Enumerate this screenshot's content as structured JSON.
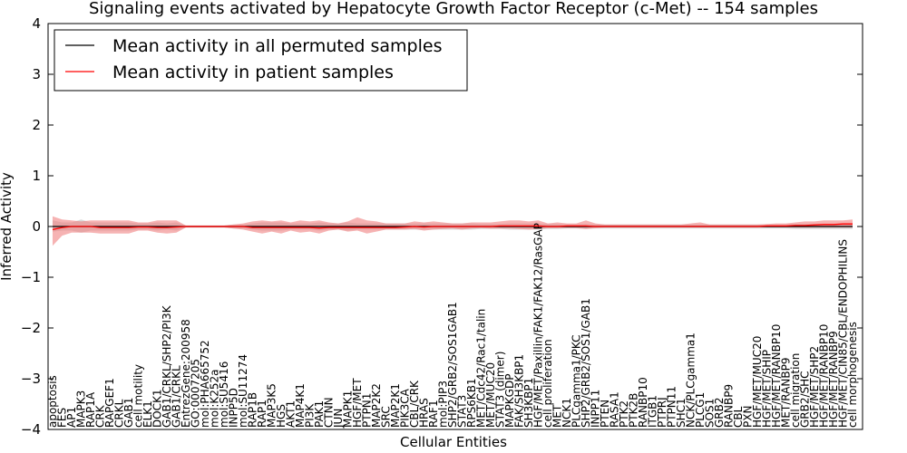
{
  "chart_data": {
    "type": "line",
    "title": "Signaling events activated by Hepatocyte Growth Factor Receptor (c-Met) -- 154 samples",
    "xlabel": "Cellular Entities",
    "ylabel": "Inferred Activity",
    "ylim": [
      -4,
      4
    ],
    "yticks": [
      -4,
      -3,
      -2,
      -1,
      0,
      1,
      2,
      3,
      4
    ],
    "ytick_labels": [
      "−4",
      "−3",
      "−2",
      "−1",
      "0",
      "1",
      "2",
      "3",
      "4"
    ],
    "legend_position": "top-left",
    "categories": [
      "apoptosis",
      "FES",
      "AP1",
      "MAPK3",
      "RAP1A",
      "CRK",
      "RAPGEF1",
      "CRKL",
      "GAB1",
      "cell motility",
      "ELK1",
      "DOCK1",
      "GAB1/CRKL/SHP2/PI3K",
      "GAB1/CRKL",
      "EntrezGene:200958",
      "GO:0007205",
      "mol:PHA665752",
      "mol:K252a",
      "mol:SU5416",
      "INPP5D",
      "mol:SU11274",
      "RAP1B",
      "RAP1",
      "MAP3K5",
      "HGS",
      "AKT1",
      "MAP4K1",
      "PI3K",
      "PAK1",
      "CTNN",
      "JUN",
      "MAPK1",
      "HGF/MET",
      "PTPN1",
      "MAP2K2",
      "SRC",
      "MAP2K1",
      "PIK3CA",
      "CBL/CRK",
      "HRAS",
      "RAF1",
      "mol:PIP3",
      "SHP2/GRB2/SOS1GAB1",
      "STAT3",
      "RPS6KB1",
      "MET/Cdc42/Rac1/talin",
      "MET/MUC20",
      "STAT3 (dimer)",
      "MAPKGDP",
      "FAK/SH3KBP1",
      "SH3KBP1",
      "HGF/MET/Paxillin/FAK1/FAK12/RasGAP",
      "cell proliferation",
      "MET",
      "NCK1",
      "PLCgamma1/PKC",
      "SHP2/GRB2/SOS1/GAB1",
      "INPP11",
      "PTEN",
      "RASA1",
      "PTK2",
      "PTK2B",
      "RANBP10",
      "ITGB1",
      "PTPRJ",
      "PTPN11",
      "SHC1",
      "NCK/PLCgamma1",
      "PLCG1",
      "SOS1",
      "GRB2",
      "RANBP9",
      "CBL",
      "PXN",
      "HGF/MET/MUC20",
      "HGF/MET/SHIP",
      "HGF/MET/RANBP10",
      "MET/RANBP9",
      "cell migration",
      "GRB2/SHC",
      "HGF/MET/SHP2",
      "HGF/MET/RANBP10",
      "HGF/MET/RANBP9",
      "HGF/MET/CIN85/CBL/ENDOPHILINS",
      "cell morphogenesis"
    ],
    "series": [
      {
        "name": "Mean activity in all permuted samples",
        "color": "#000000",
        "values": [
          0.0,
          0.0,
          0.0,
          0.0,
          0.0,
          0.0,
          0.0,
          0.0,
          0.0,
          0.0,
          0.0,
          0.0,
          0.0,
          0.0,
          0.0,
          0.0,
          0.0,
          0.0,
          0.0,
          0.0,
          0.0,
          0.0,
          0.0,
          0.0,
          0.0,
          0.0,
          0.0,
          0.0,
          0.0,
          0.0,
          0.0,
          0.0,
          0.0,
          0.0,
          0.0,
          0.0,
          0.0,
          0.0,
          0.0,
          0.0,
          0.0,
          0.0,
          0.0,
          0.0,
          0.0,
          0.0,
          0.0,
          0.0,
          0.0,
          0.0,
          0.0,
          0.0,
          0.0,
          0.0,
          0.0,
          0.0,
          0.0,
          0.0,
          0.0,
          0.0,
          0.0,
          0.0,
          0.0,
          0.0,
          0.0,
          0.0,
          0.0,
          0.0,
          0.0,
          0.0,
          0.0,
          0.0,
          0.0,
          0.0,
          0.0,
          0.0,
          0.0,
          0.0,
          0.0,
          0.0,
          0.0,
          0.0,
          0.0,
          0.0,
          0.0
        ],
        "band_lower": [
          -0.1,
          -0.08,
          -0.08,
          -0.12,
          -0.08,
          -0.08,
          -0.08,
          -0.08,
          -0.08,
          -0.06,
          -0.06,
          -0.08,
          -0.06,
          -0.08,
          -0.02,
          -0.02,
          -0.02,
          -0.02,
          -0.02,
          -0.04,
          -0.04,
          -0.06,
          -0.08,
          -0.08,
          -0.08,
          -0.06,
          -0.06,
          -0.06,
          -0.08,
          -0.06,
          -0.06,
          -0.08,
          -0.06,
          -0.06,
          -0.06,
          -0.06,
          -0.06,
          -0.06,
          -0.06,
          -0.06,
          -0.06,
          -0.06,
          -0.06,
          -0.06,
          -0.06,
          -0.05,
          -0.05,
          -0.05,
          -0.06,
          -0.06,
          -0.06,
          -0.06,
          -0.05,
          -0.05,
          -0.04,
          -0.04,
          -0.05,
          -0.04,
          -0.04,
          -0.04,
          -0.04,
          -0.04,
          -0.04,
          -0.04,
          -0.04,
          -0.04,
          -0.04,
          -0.04,
          -0.04,
          -0.04,
          -0.04,
          -0.04,
          -0.04,
          -0.04,
          -0.04,
          -0.04,
          -0.04,
          -0.04,
          -0.05,
          -0.05,
          -0.05,
          -0.05,
          -0.05,
          -0.05,
          -0.05
        ],
        "band_upper": [
          0.12,
          0.08,
          0.08,
          0.14,
          0.08,
          0.08,
          0.08,
          0.08,
          0.08,
          0.06,
          0.06,
          0.08,
          0.06,
          0.08,
          0.02,
          0.02,
          0.02,
          0.02,
          0.02,
          0.04,
          0.04,
          0.06,
          0.08,
          0.08,
          0.08,
          0.06,
          0.06,
          0.06,
          0.08,
          0.06,
          0.06,
          0.08,
          0.06,
          0.06,
          0.06,
          0.06,
          0.06,
          0.06,
          0.06,
          0.06,
          0.06,
          0.06,
          0.06,
          0.06,
          0.06,
          0.05,
          0.05,
          0.05,
          0.06,
          0.06,
          0.06,
          0.06,
          0.05,
          0.05,
          0.04,
          0.04,
          0.05,
          0.04,
          0.04,
          0.04,
          0.04,
          0.04,
          0.04,
          0.04,
          0.04,
          0.04,
          0.04,
          0.04,
          0.04,
          0.04,
          0.04,
          0.04,
          0.04,
          0.04,
          0.04,
          0.04,
          0.04,
          0.04,
          0.05,
          0.05,
          0.05,
          0.05,
          0.05,
          0.05,
          0.05
        ]
      },
      {
        "name": "Mean activity in patient samples",
        "color": "#ff0000",
        "values": [
          -0.06,
          -0.02,
          0.0,
          0.0,
          0.0,
          -0.02,
          -0.02,
          -0.02,
          -0.02,
          -0.01,
          -0.01,
          -0.02,
          -0.02,
          -0.01,
          0.0,
          0.0,
          0.0,
          0.0,
          0.0,
          0.0,
          0.0,
          -0.02,
          -0.02,
          -0.02,
          -0.02,
          -0.02,
          -0.02,
          -0.02,
          -0.03,
          -0.02,
          -0.02,
          -0.02,
          -0.02,
          -0.02,
          -0.02,
          -0.02,
          -0.02,
          -0.01,
          0.0,
          -0.01,
          0.0,
          0.0,
          0.0,
          0.0,
          0.0,
          0.0,
          0.0,
          0.01,
          0.01,
          0.01,
          0.01,
          0.01,
          0.0,
          0.0,
          0.01,
          0.01,
          0.01,
          0.0,
          0.0,
          0.0,
          0.0,
          0.0,
          0.0,
          0.0,
          0.0,
          0.0,
          0.0,
          0.0,
          0.0,
          0.0,
          0.0,
          0.0,
          0.0,
          0.0,
          0.0,
          0.01,
          0.01,
          0.01,
          0.02,
          0.02,
          0.03,
          0.04,
          0.04,
          0.05,
          0.05
        ],
        "band_lower": [
          -0.38,
          -0.18,
          -0.12,
          -0.12,
          -0.12,
          -0.14,
          -0.14,
          -0.14,
          -0.14,
          -0.08,
          -0.08,
          -0.12,
          -0.14,
          -0.12,
          -0.02,
          -0.02,
          -0.02,
          -0.02,
          -0.02,
          -0.04,
          -0.06,
          -0.1,
          -0.14,
          -0.1,
          -0.14,
          -0.08,
          -0.12,
          -0.1,
          -0.14,
          -0.08,
          -0.06,
          -0.1,
          -0.08,
          -0.14,
          -0.1,
          -0.06,
          -0.06,
          -0.06,
          -0.05,
          -0.08,
          -0.06,
          -0.05,
          -0.04,
          -0.06,
          -0.04,
          -0.03,
          -0.04,
          -0.04,
          -0.04,
          -0.05,
          -0.06,
          -0.05,
          -0.03,
          -0.03,
          -0.03,
          -0.03,
          -0.05,
          -0.03,
          -0.02,
          -0.02,
          -0.02,
          -0.02,
          -0.02,
          -0.02,
          -0.02,
          -0.02,
          -0.02,
          -0.02,
          -0.02,
          -0.02,
          -0.02,
          -0.02,
          -0.02,
          -0.02,
          -0.02,
          -0.02,
          -0.02,
          -0.02,
          -0.02,
          -0.02,
          -0.02,
          -0.02,
          -0.02,
          -0.02,
          -0.02
        ],
        "band_upper": [
          0.2,
          0.14,
          0.12,
          0.1,
          0.12,
          0.12,
          0.12,
          0.12,
          0.12,
          0.08,
          0.08,
          0.12,
          0.12,
          0.12,
          0.02,
          0.02,
          0.02,
          0.02,
          0.02,
          0.04,
          0.06,
          0.1,
          0.12,
          0.1,
          0.12,
          0.08,
          0.12,
          0.1,
          0.12,
          0.08,
          0.06,
          0.1,
          0.18,
          0.12,
          0.1,
          0.06,
          0.06,
          0.06,
          0.1,
          0.08,
          0.1,
          0.08,
          0.06,
          0.06,
          0.08,
          0.08,
          0.08,
          0.1,
          0.12,
          0.12,
          0.1,
          0.12,
          0.06,
          0.08,
          0.06,
          0.06,
          0.12,
          0.06,
          0.04,
          0.04,
          0.04,
          0.04,
          0.04,
          0.04,
          0.04,
          0.04,
          0.04,
          0.06,
          0.08,
          0.04,
          0.04,
          0.04,
          0.04,
          0.04,
          0.04,
          0.05,
          0.06,
          0.06,
          0.08,
          0.1,
          0.1,
          0.12,
          0.12,
          0.12,
          0.14
        ]
      }
    ]
  }
}
